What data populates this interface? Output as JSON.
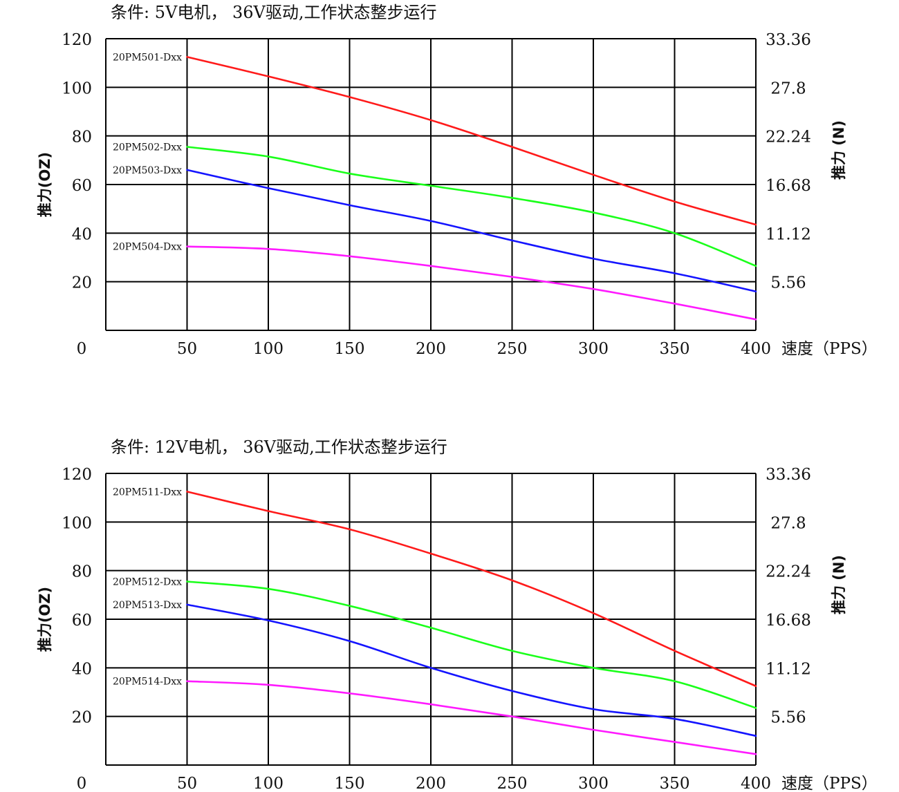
{
  "chart_data": [
    {
      "type": "line",
      "title": "条件: 5V电机， 36V驱动,工作状态整步运行",
      "ylabel": "推力(OZ)",
      "ylabel_right": "推力 (N)",
      "xlabel": "速度（PPS）",
      "x_ticks": [
        "0",
        "50",
        "100",
        "150",
        "200",
        "250",
        "300",
        "350",
        "400"
      ],
      "y_ticks": [
        "20",
        "40",
        "60",
        "80",
        "100",
        "120"
      ],
      "y_right_ticks": [
        "5.56",
        "11.12",
        "16.68",
        "22.24",
        "27.8",
        "33.36"
      ],
      "xlim": [
        0,
        400
      ],
      "ylim": [
        0,
        120
      ],
      "x_grid": [
        50,
        100,
        150,
        200,
        250,
        300,
        350,
        400
      ],
      "y_grid": [
        20,
        40,
        60,
        80,
        100,
        120
      ],
      "x": [
        50,
        100,
        150,
        200,
        250,
        300,
        350,
        400
      ],
      "series": [
        {
          "name": "20PM501-Dxx",
          "color": "#ff1a1a",
          "values": [
            112.5,
            104.5,
            96,
            86.5,
            75.5,
            64,
            53,
            43.5
          ]
        },
        {
          "name": "20PM502-Dxx",
          "color": "#1aff1a",
          "values": [
            75.5,
            71.5,
            64.5,
            59.5,
            54.5,
            48.5,
            40,
            26.5
          ]
        },
        {
          "name": "20PM503-Dxx",
          "color": "#1414ff",
          "values": [
            66,
            58.5,
            51.5,
            45,
            37,
            29.5,
            23.5,
            16
          ]
        },
        {
          "name": "20PM504-Dxx",
          "color": "#ff1aff",
          "values": [
            34.5,
            33.5,
            30.5,
            26.5,
            22,
            17,
            11,
            4.5
          ]
        }
      ]
    },
    {
      "type": "line",
      "title": "条件: 12V电机， 36V驱动,工作状态整步运行",
      "ylabel": "推力(OZ)",
      "ylabel_right": "推力 (N)",
      "xlabel": "速度（PPS）",
      "x_ticks": [
        "0",
        "50",
        "100",
        "150",
        "200",
        "250",
        "300",
        "350",
        "400"
      ],
      "y_ticks": [
        "20",
        "40",
        "60",
        "80",
        "100",
        "120"
      ],
      "y_right_ticks": [
        "5.56",
        "11.12",
        "16.68",
        "22.24",
        "27.8",
        "33.36"
      ],
      "xlim": [
        0,
        400
      ],
      "ylim": [
        0,
        120
      ],
      "x_grid": [
        50,
        100,
        150,
        200,
        250,
        300,
        350,
        400
      ],
      "y_grid": [
        20,
        40,
        60,
        80,
        100,
        120
      ],
      "x": [
        50,
        100,
        150,
        200,
        250,
        300,
        350,
        400
      ],
      "series": [
        {
          "name": "20PM511-Dxx",
          "color": "#ff1a1a",
          "values": [
            112.5,
            104.5,
            97,
            87,
            76,
            62.5,
            47,
            32.5
          ]
        },
        {
          "name": "20PM512-Dxx",
          "color": "#1aff1a",
          "values": [
            75.5,
            72.5,
            65.5,
            56.5,
            47,
            40,
            34.5,
            23.5
          ]
        },
        {
          "name": "20PM513-Dxx",
          "color": "#1414ff",
          "values": [
            66,
            59.5,
            51,
            40,
            30.5,
            23,
            19,
            12
          ]
        },
        {
          "name": "20PM514-Dxx",
          "color": "#ff1aff",
          "values": [
            34.5,
            33,
            29.5,
            25,
            20,
            14.5,
            9.5,
            4.5
          ]
        }
      ]
    }
  ]
}
